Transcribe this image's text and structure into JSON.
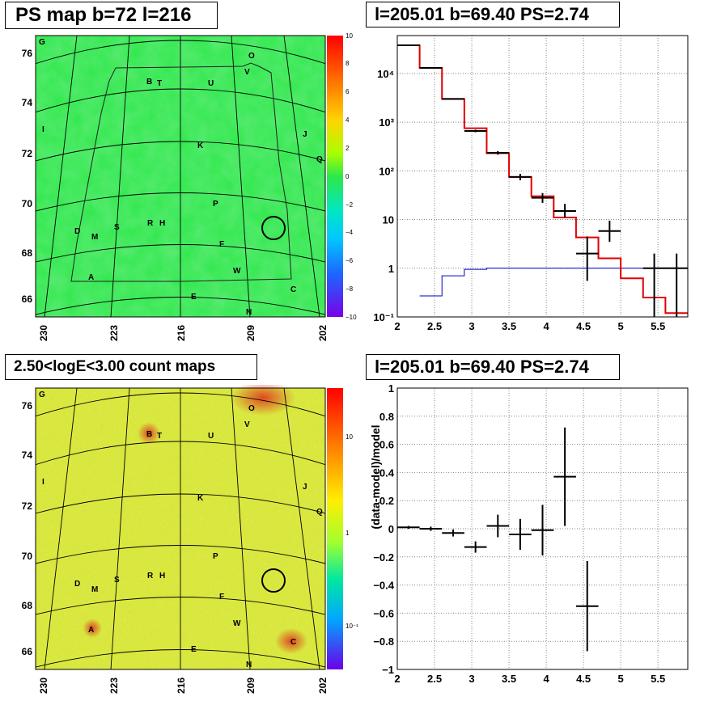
{
  "panels": {
    "tl": {
      "title": "PS map b=72 l=216"
    },
    "tr": {
      "title": "l=205.01 b=69.40 PS=2.74"
    },
    "bl": {
      "title": "2.50<logE<3.00 count maps"
    },
    "br": {
      "title": "l=205.01 b=69.40 PS=2.74"
    }
  },
  "map_axes": {
    "lat_ticks": [
      "76",
      "74",
      "72",
      "70",
      "68",
      "66"
    ],
    "lon_ticks": [
      "230",
      "223",
      "216",
      "209",
      "202"
    ]
  },
  "source_labels": [
    "G",
    "O",
    "V",
    "B",
    "T",
    "U",
    "I",
    "J",
    "K",
    "Q",
    "P",
    "D",
    "M",
    "S",
    "R",
    "H",
    "F",
    "W",
    "A",
    "C",
    "E",
    "N"
  ],
  "colorbars": {
    "ps": {
      "ticks": [
        "10",
        "8",
        "6",
        "4",
        "2",
        "0",
        "−2",
        "−4",
        "−6",
        "−8",
        "−10"
      ],
      "range": [
        -10,
        10
      ]
    },
    "counts": {
      "ticks": [
        "10",
        "1",
        "10⁻¹"
      ],
      "scale": "log"
    }
  },
  "colors": {
    "map_green": "#2ee84a",
    "model_red": "#e10000",
    "bkg_blue": "#0000c8",
    "circle": "#000000"
  },
  "chart_data": [
    {
      "type": "line",
      "panel": "spectrum",
      "y_scale": "log",
      "xlim": [
        2,
        5.9
      ],
      "ylim": [
        0.1,
        60000
      ],
      "x_ticks": [
        "2",
        "2.5",
        "3",
        "3.5",
        "4",
        "4.5",
        "5",
        "5.5"
      ],
      "y_ticks": [
        "10⁻¹",
        "1",
        "10",
        "10²",
        "10³",
        "10⁴"
      ],
      "grid": true,
      "series": [
        {
          "style": "step-model-total",
          "edges": [
            2.0,
            2.3,
            2.6,
            2.9,
            3.2,
            3.5,
            3.8,
            4.1,
            4.4,
            4.7,
            5.0,
            5.3,
            5.6,
            5.9
          ],
          "values": [
            38000,
            13000,
            3000,
            750,
            230,
            75,
            30,
            11,
            4.3,
            1.6,
            0.62,
            0.25,
            0.12
          ]
        },
        {
          "style": "step-model-background",
          "edges": [
            2.3,
            2.6,
            2.9,
            3.2,
            3.5,
            3.8,
            4.1,
            4.4,
            4.7,
            5.0,
            5.3,
            5.6,
            5.9
          ],
          "values": [
            0.27,
            0.7,
            0.95,
            1.0,
            1.0,
            1.0,
            1.0,
            1.0,
            1.0,
            1.0,
            1.0,
            1.0
          ]
        },
        {
          "style": "data-points",
          "points": [
            {
              "x": 2.15,
              "y": 38000,
              "xerr": 0.15,
              "ylo": 37000,
              "yhi": 39000
            },
            {
              "x": 2.45,
              "y": 13000,
              "xerr": 0.15,
              "ylo": 12700,
              "yhi": 13300
            },
            {
              "x": 2.75,
              "y": 3000,
              "xerr": 0.15,
              "ylo": 2900,
              "yhi": 3100
            },
            {
              "x": 3.05,
              "y": 660,
              "xerr": 0.15,
              "ylo": 620,
              "yhi": 700
            },
            {
              "x": 3.35,
              "y": 235,
              "xerr": 0.15,
              "ylo": 215,
              "yhi": 255
            },
            {
              "x": 3.65,
              "y": 75,
              "xerr": 0.15,
              "ylo": 64,
              "yhi": 87
            },
            {
              "x": 3.95,
              "y": 28,
              "xerr": 0.15,
              "ylo": 22,
              "yhi": 35
            },
            {
              "x": 4.25,
              "y": 15,
              "xerr": 0.15,
              "ylo": 11,
              "yhi": 21
            },
            {
              "x": 4.55,
              "y": 2.0,
              "xerr": 0.15,
              "ylo": 0.55,
              "yhi": 4.5
            },
            {
              "x": 4.85,
              "y": 5.8,
              "xerr": 0.15,
              "ylo": 3.5,
              "yhi": 9.5
            },
            {
              "x": 5.45,
              "y": 1.0,
              "xerr": 0.15,
              "ylo": 0.1,
              "yhi": 2.0
            },
            {
              "x": 5.75,
              "y": 1.0,
              "xerr": 0.15,
              "ylo": 0.1,
              "yhi": 2.0
            }
          ]
        }
      ]
    },
    {
      "type": "scatter",
      "panel": "residuals",
      "ylabel": "(data-model)/model",
      "xlim": [
        2,
        5.9
      ],
      "ylim": [
        -1,
        1
      ],
      "x_ticks": [
        "2",
        "2.5",
        "3",
        "3.5",
        "4",
        "4.5",
        "5",
        "5.5"
      ],
      "y_ticks": [
        "1",
        "0.8",
        "0.6",
        "0.4",
        "0.2",
        "0",
        "−0.2",
        "−0.4",
        "−0.6",
        "−0.8",
        "−1"
      ],
      "grid": true,
      "points": [
        {
          "x": 2.15,
          "y": 0.01,
          "xerr": 0.15,
          "yerr": 0.01
        },
        {
          "x": 2.45,
          "y": 0.0,
          "xerr": 0.15,
          "yerr": 0.015
        },
        {
          "x": 2.75,
          "y": -0.03,
          "xerr": 0.15,
          "yerr": 0.025
        },
        {
          "x": 3.05,
          "y": -0.13,
          "xerr": 0.15,
          "yerr": 0.04
        },
        {
          "x": 3.35,
          "y": 0.02,
          "xerr": 0.15,
          "yerr": 0.08
        },
        {
          "x": 3.65,
          "y": -0.04,
          "xerr": 0.15,
          "yerr": 0.11
        },
        {
          "x": 3.95,
          "y": -0.01,
          "xerr": 0.15,
          "yerr": 0.18
        },
        {
          "x": 4.25,
          "y": 0.37,
          "xerr": 0.15,
          "yerr": 0.35
        },
        {
          "x": 4.55,
          "y": -0.55,
          "xerr": 0.15,
          "yerr": 0.32
        }
      ]
    }
  ]
}
